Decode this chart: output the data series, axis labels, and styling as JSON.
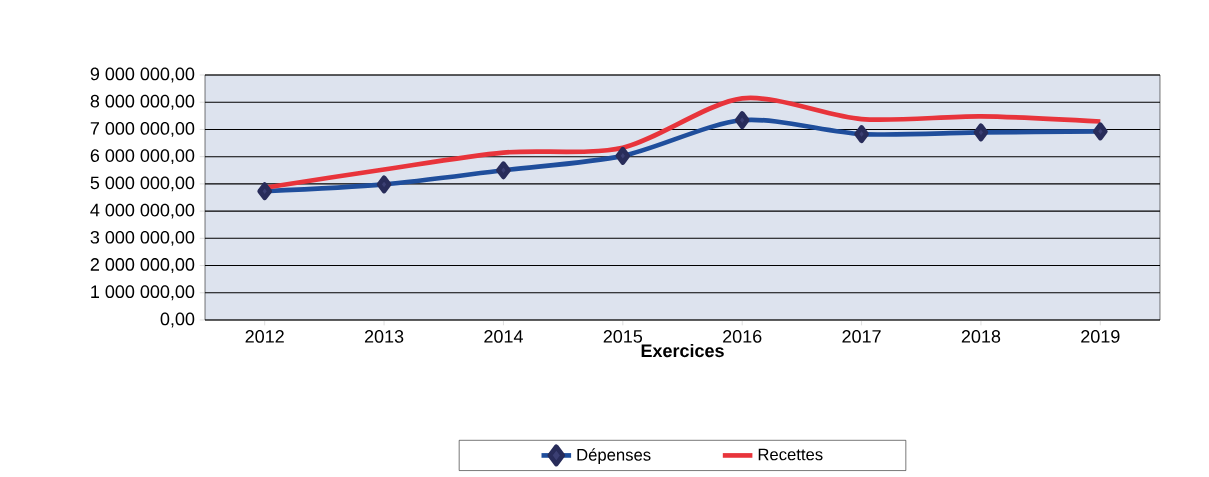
{
  "chart_data": {
    "type": "line",
    "xlabel": "Exercices",
    "categories": [
      "2012",
      "2013",
      "2014",
      "2015",
      "2016",
      "2017",
      "2018",
      "2019"
    ],
    "series": [
      {
        "name": "Dépenses",
        "color": "#1f4e9c",
        "marker": "diamond",
        "values": [
          4730000,
          4980000,
          5500000,
          6030000,
          7340000,
          6830000,
          6890000,
          6930000
        ]
      },
      {
        "name": "Recettes",
        "color": "#e8343b",
        "marker": "none",
        "values": [
          4860000,
          5530000,
          6150000,
          6330000,
          8140000,
          7380000,
          7480000,
          7290000
        ]
      }
    ],
    "ylim": [
      0,
      9000000
    ],
    "yticks": [
      {
        "value": 0,
        "label": "0,00"
      },
      {
        "value": 1000000,
        "label": "1 000 000,00"
      },
      {
        "value": 2000000,
        "label": "2 000 000,00"
      },
      {
        "value": 3000000,
        "label": "3 000 000,00"
      },
      {
        "value": 4000000,
        "label": "4 000 000,00"
      },
      {
        "value": 5000000,
        "label": "5 000 000,00"
      },
      {
        "value": 6000000,
        "label": "6 000 000,00"
      },
      {
        "value": 7000000,
        "label": "7 000 000,00"
      },
      {
        "value": 8000000,
        "label": "8 000 000,00"
      },
      {
        "value": 9000000,
        "label": "9 000 000,00"
      }
    ],
    "grid": "y",
    "legend": "bottom",
    "line_style": "solid"
  }
}
